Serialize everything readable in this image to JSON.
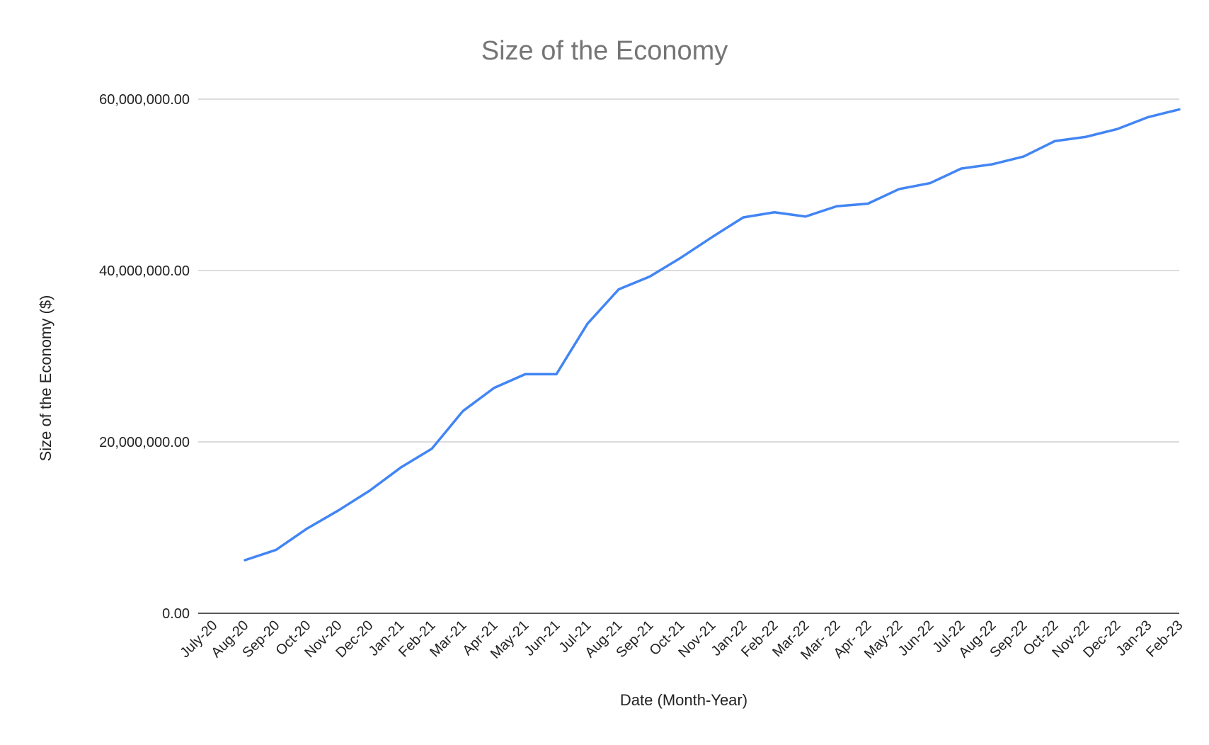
{
  "chart_data": {
    "type": "line",
    "title": "Size of the Economy",
    "xlabel": "Date (Month-Year)",
    "ylabel": "Size of the Economy ($)",
    "ylim": [
      0,
      60000000
    ],
    "yticks": [
      0,
      20000000,
      40000000,
      60000000
    ],
    "ytick_labels": [
      "0.00",
      "20,000,000.00",
      "40,000,000.00",
      "60,000,000.00"
    ],
    "grid": true,
    "legend": "none",
    "categories": [
      "July-20",
      "Aug-20",
      "Sep-20",
      "Oct-20",
      "Nov-20",
      "Dec-20",
      "Jan-21",
      "Feb-21",
      "Mar-21",
      "Apr-21",
      "May-21",
      "Jun-21",
      "Jul-21",
      "Aug-21",
      "Sep-21",
      "Oct-21",
      "Nov-21",
      "Jan-22",
      "Feb-22",
      "Mar-22",
      "Mar- 22",
      "Apr- 22",
      "May-22",
      "Jun-22",
      "Jul-22",
      "Aug-22",
      "Sep-22",
      "Oct-22",
      "Nov-22",
      "Dec-22",
      "Jan-23",
      "Feb-23"
    ],
    "series": [
      {
        "color": "#4285f4",
        "values": [
          null,
          6200000,
          7400000,
          9900000,
          12000000,
          14300000,
          17000000,
          19200000,
          23600000,
          26300000,
          27900000,
          27900000,
          33800000,
          37800000,
          39300000,
          41500000,
          43900000,
          46200000,
          46800000,
          46300000,
          47500000,
          47800000,
          49500000,
          50200000,
          51900000,
          52400000,
          53300000,
          55100000,
          55600000,
          56500000,
          57900000,
          58800000
        ]
      }
    ]
  }
}
